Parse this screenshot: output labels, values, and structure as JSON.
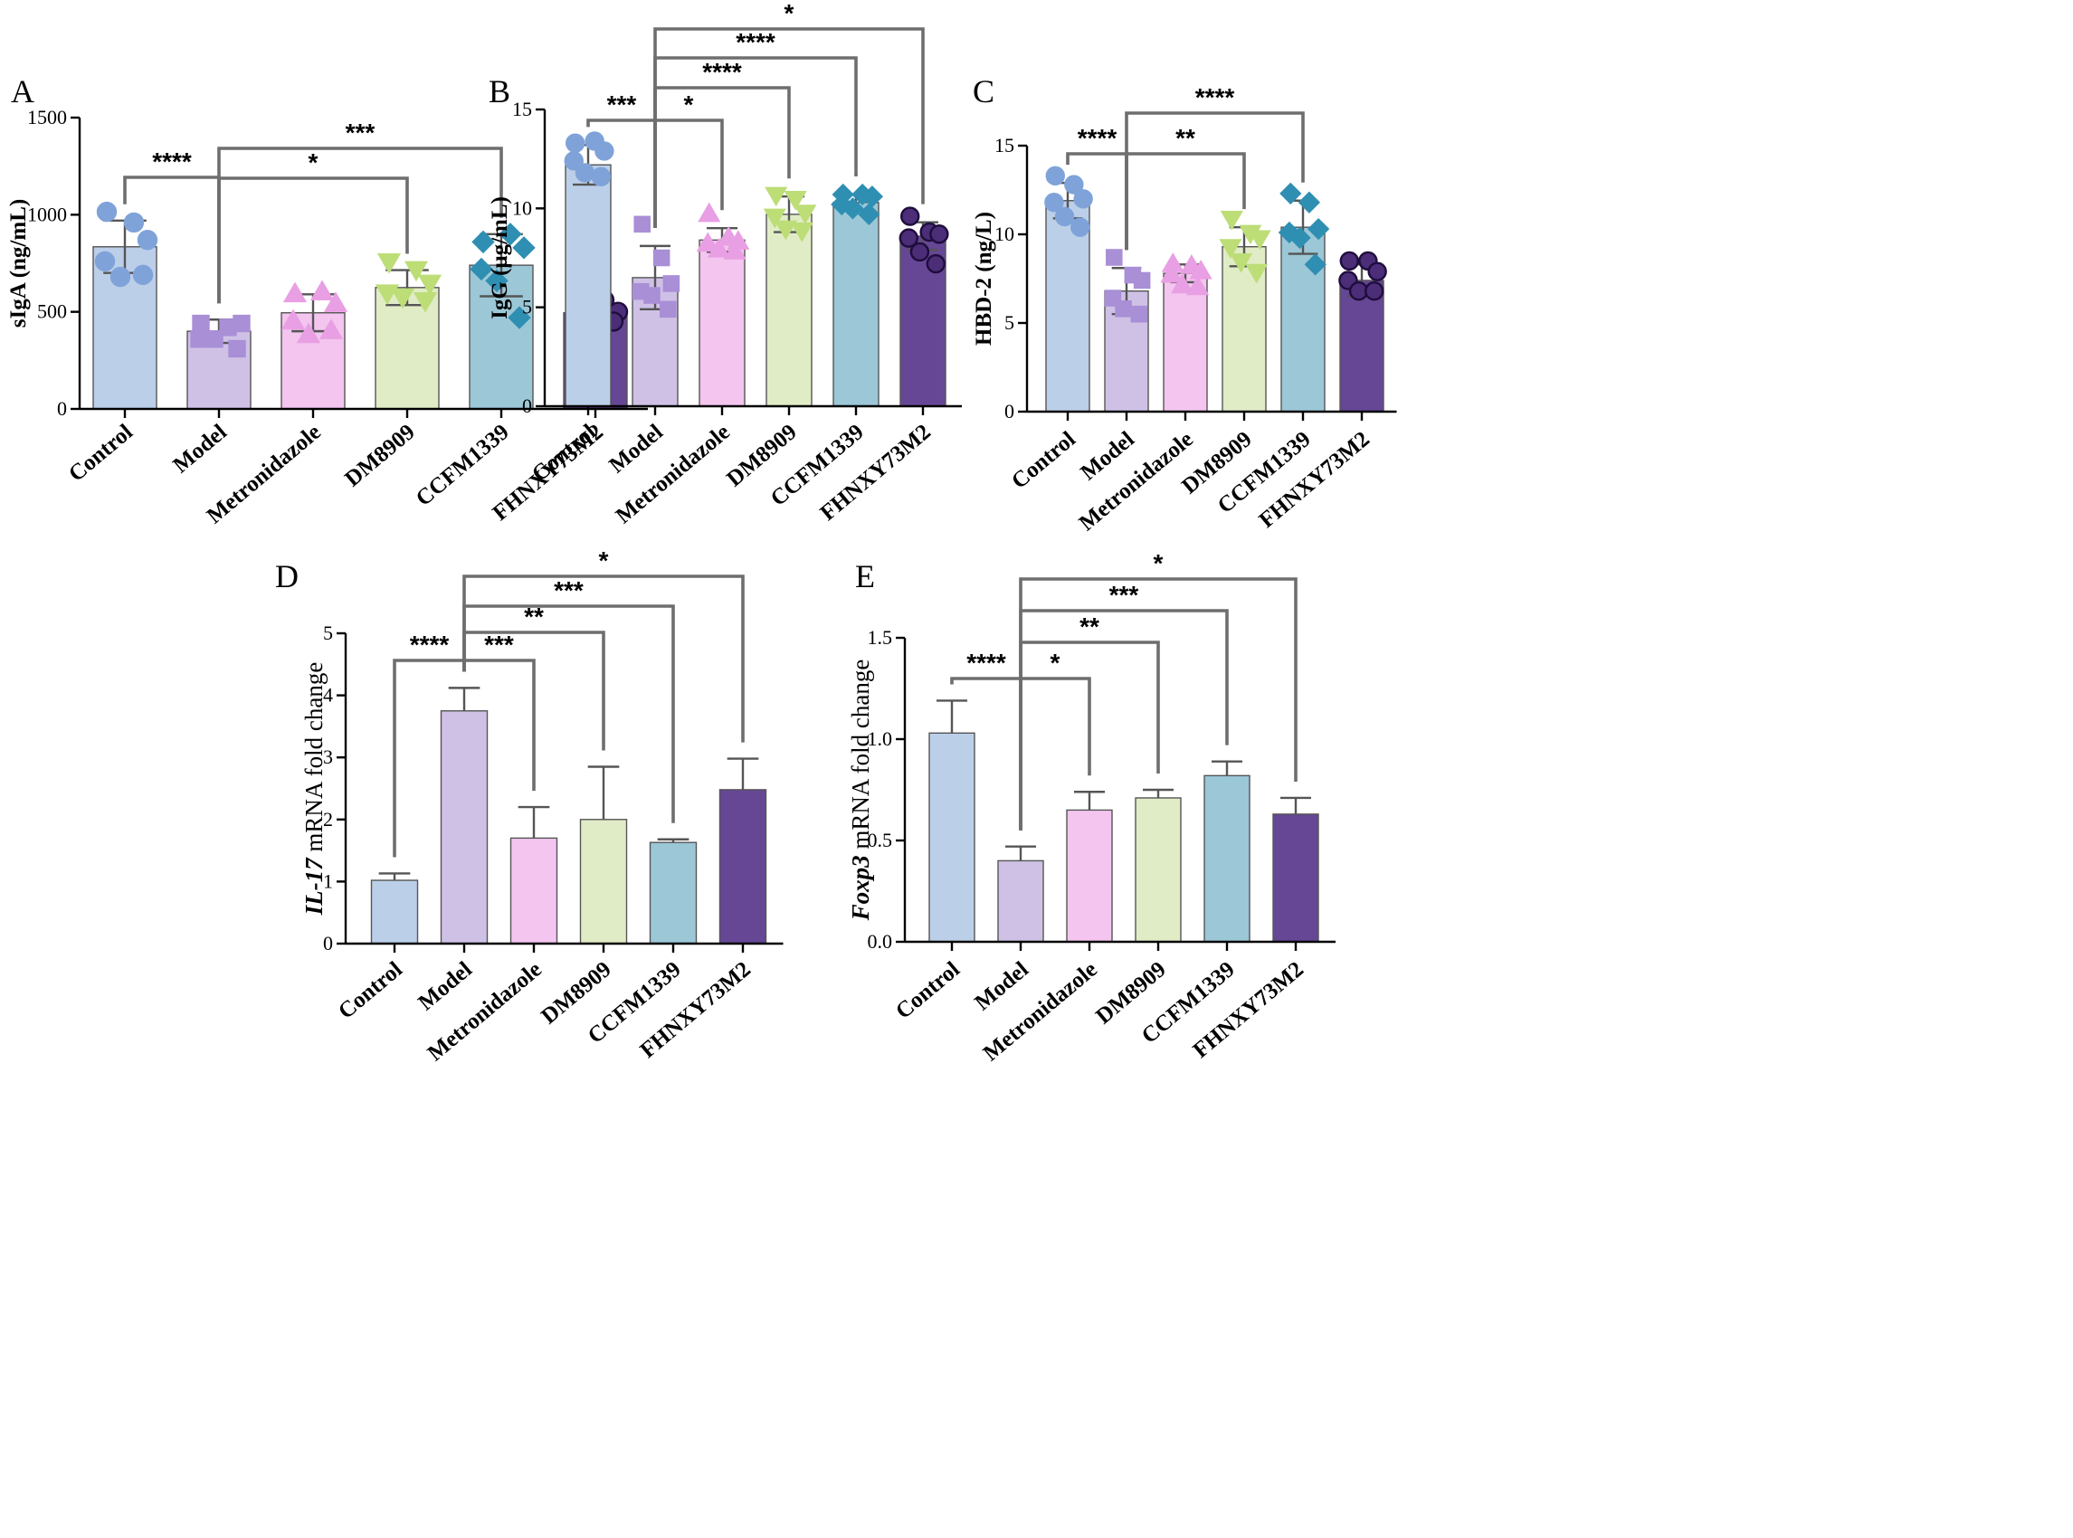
{
  "colors": {
    "Control": "#bccfe9",
    "Model": "#cfc1e6",
    "Metronidazole": "#f3c5ef",
    "DM8909": "#e0ecc6",
    "CCFM1339": "#9bc7d7",
    "FHNXY73M2": "#664795",
    "markers": [
      "#7fa3d9",
      "#a98fd6",
      "#e99fe3",
      "#bddd77",
      "#2f8fb2",
      "#4b2d78"
    ],
    "marker_edge": [
      "#7fa3d9",
      "#a98fd6",
      "#e99fe3",
      "#bddd77",
      "#2f8fb2",
      "#1f0d3d"
    ]
  },
  "chart_data": [
    {
      "panel": "A",
      "type": "bar",
      "categories": [
        "Control",
        "Model",
        "Metronidazole",
        "DM8909",
        "CCFM1339",
        "FHNXY73M2"
      ],
      "values": [
        835,
        400,
        495,
        625,
        740,
        495
      ],
      "errors": [
        135,
        60,
        95,
        90,
        160,
        40
      ],
      "points": [
        [
          1015,
          960,
          870,
          760,
          680,
          690
        ],
        [
          440,
          420,
          440,
          360,
          360,
          310
        ],
        [
          590,
          600,
          540,
          450,
          380,
          400
        ],
        [
          760,
          720,
          650,
          600,
          580,
          560
        ],
        [
          860,
          900,
          830,
          720,
          660,
          470
        ],
        [
          600,
          560,
          500,
          470,
          470,
          450
        ]
      ],
      "marker": [
        "circle",
        "square",
        "triangle-up",
        "triangle-down",
        "diamond",
        "circle"
      ],
      "ylabel": "sIgA (ng/mL)",
      "ylim": [
        0,
        1500
      ],
      "yticks": [
        0,
        500,
        1000,
        1500
      ],
      "brackets": [
        {
          "from": 0,
          "to": 1,
          "label": "****"
        },
        {
          "from": 1,
          "to": 3,
          "label": "*"
        },
        {
          "from": 1,
          "to": 4,
          "label": "***"
        }
      ]
    },
    {
      "panel": "B",
      "type": "bar",
      "categories": [
        "Control",
        "Model",
        "Metronidazole",
        "DM8909",
        "CCFM1339",
        "FHNXY73M2"
      ],
      "values": [
        12.2,
        6.5,
        8.4,
        9.7,
        10.3,
        8.6
      ],
      "errors": [
        1.0,
        1.6,
        0.6,
        0.9,
        0.4,
        0.7
      ],
      "points": [
        [
          13.3,
          13.4,
          12.9,
          12.4,
          11.8,
          11.6
        ],
        [
          9.2,
          7.5,
          6.2,
          5.8,
          5.6,
          4.9
        ],
        [
          9.7,
          8.5,
          8.3,
          8.2,
          7.9,
          7.8
        ],
        [
          10.7,
          10.5,
          9.8,
          9.6,
          9.0,
          8.9
        ],
        [
          10.7,
          10.7,
          10.6,
          10.2,
          10.0,
          9.7
        ],
        [
          9.6,
          8.8,
          8.7,
          8.5,
          7.8,
          7.2
        ]
      ],
      "marker": [
        "circle",
        "square",
        "triangle-up",
        "triangle-down",
        "diamond",
        "circle"
      ],
      "ylabel": "IgG (μg/mL)",
      "ylim": [
        0,
        15
      ],
      "yticks": [
        0,
        5,
        10,
        15
      ],
      "brackets": [
        {
          "from": 0,
          "to": 1,
          "label": "***"
        },
        {
          "from": 1,
          "to": 2,
          "label": "*"
        },
        {
          "from": 1,
          "to": 3,
          "label": "****"
        },
        {
          "from": 1,
          "to": 4,
          "label": "****"
        },
        {
          "from": 1,
          "to": 5,
          "label": "*"
        }
      ]
    },
    {
      "panel": "C",
      "type": "bar",
      "categories": [
        "Control",
        "Model",
        "Metronidazole",
        "DM8909",
        "CCFM1339",
        "FHNXY73M2"
      ],
      "values": [
        11.9,
        6.8,
        7.8,
        9.3,
        10.4,
        7.4
      ],
      "errors": [
        1.0,
        1.3,
        0.5,
        1.1,
        1.5,
        0.9
      ],
      "points": [
        [
          13.3,
          12.8,
          12.0,
          11.8,
          11.0,
          10.4
        ],
        [
          8.7,
          7.7,
          7.4,
          6.4,
          5.8,
          5.5
        ],
        [
          8.3,
          8.2,
          7.9,
          7.7,
          7.1,
          7.0
        ],
        [
          10.9,
          10.1,
          9.8,
          9.3,
          8.5,
          7.9
        ],
        [
          12.3,
          11.8,
          10.3,
          10.1,
          9.8,
          8.3
        ],
        [
          8.5,
          8.5,
          7.9,
          7.4,
          6.8,
          6.8
        ]
      ],
      "marker": [
        "circle",
        "square",
        "triangle-up",
        "triangle-down",
        "diamond",
        "circle"
      ],
      "ylabel": "HBD-2 (ng/L)",
      "ylim": [
        0,
        15
      ],
      "yticks": [
        0,
        5,
        10,
        15
      ],
      "brackets": [
        {
          "from": 0,
          "to": 1,
          "label": "****"
        },
        {
          "from": 1,
          "to": 3,
          "label": "**"
        },
        {
          "from": 1,
          "to": 4,
          "label": "****"
        }
      ]
    },
    {
      "panel": "D",
      "type": "bar",
      "categories": [
        "Control",
        "Model",
        "Metronidazole",
        "DM8909",
        "CCFM1339",
        "FHNXY73M2"
      ],
      "values": [
        1.02,
        3.75,
        1.7,
        2.0,
        1.63,
        2.48
      ],
      "errors": [
        0.11,
        0.37,
        0.5,
        0.85,
        0.05,
        0.5
      ],
      "ylabel_italic": "IL-17",
      "ylabel_rest": " mRNA fold change",
      "ylim": [
        0,
        5
      ],
      "yticks": [
        0,
        1,
        2,
        3,
        4,
        5
      ],
      "brackets": [
        {
          "from": 0,
          "to": 1,
          "label": "****"
        },
        {
          "from": 1,
          "to": 2,
          "label": "***"
        },
        {
          "from": 1,
          "to": 3,
          "label": "**"
        },
        {
          "from": 1,
          "to": 4,
          "label": "***"
        },
        {
          "from": 1,
          "to": 5,
          "label": "*"
        }
      ]
    },
    {
      "panel": "E",
      "type": "bar",
      "categories": [
        "Control",
        "Model",
        "Metronidazole",
        "DM8909",
        "CCFM1339",
        "FHNXY73M2"
      ],
      "values": [
        1.03,
        0.4,
        0.65,
        0.71,
        0.82,
        0.63
      ],
      "errors": [
        0.16,
        0.07,
        0.09,
        0.04,
        0.07,
        0.08
      ],
      "ylabel_italic": "Foxp3",
      "ylabel_rest": " mRNA fold change",
      "ylim": [
        0,
        1.5
      ],
      "yticks": [
        "0.0",
        "0.5",
        "1.0",
        "1.5"
      ],
      "brackets": [
        {
          "from": 0,
          "to": 1,
          "label": "****"
        },
        {
          "from": 1,
          "to": 2,
          "label": "*"
        },
        {
          "from": 1,
          "to": 3,
          "label": "**"
        },
        {
          "from": 1,
          "to": 4,
          "label": "***"
        },
        {
          "from": 1,
          "to": 5,
          "label": "*"
        }
      ]
    }
  ]
}
